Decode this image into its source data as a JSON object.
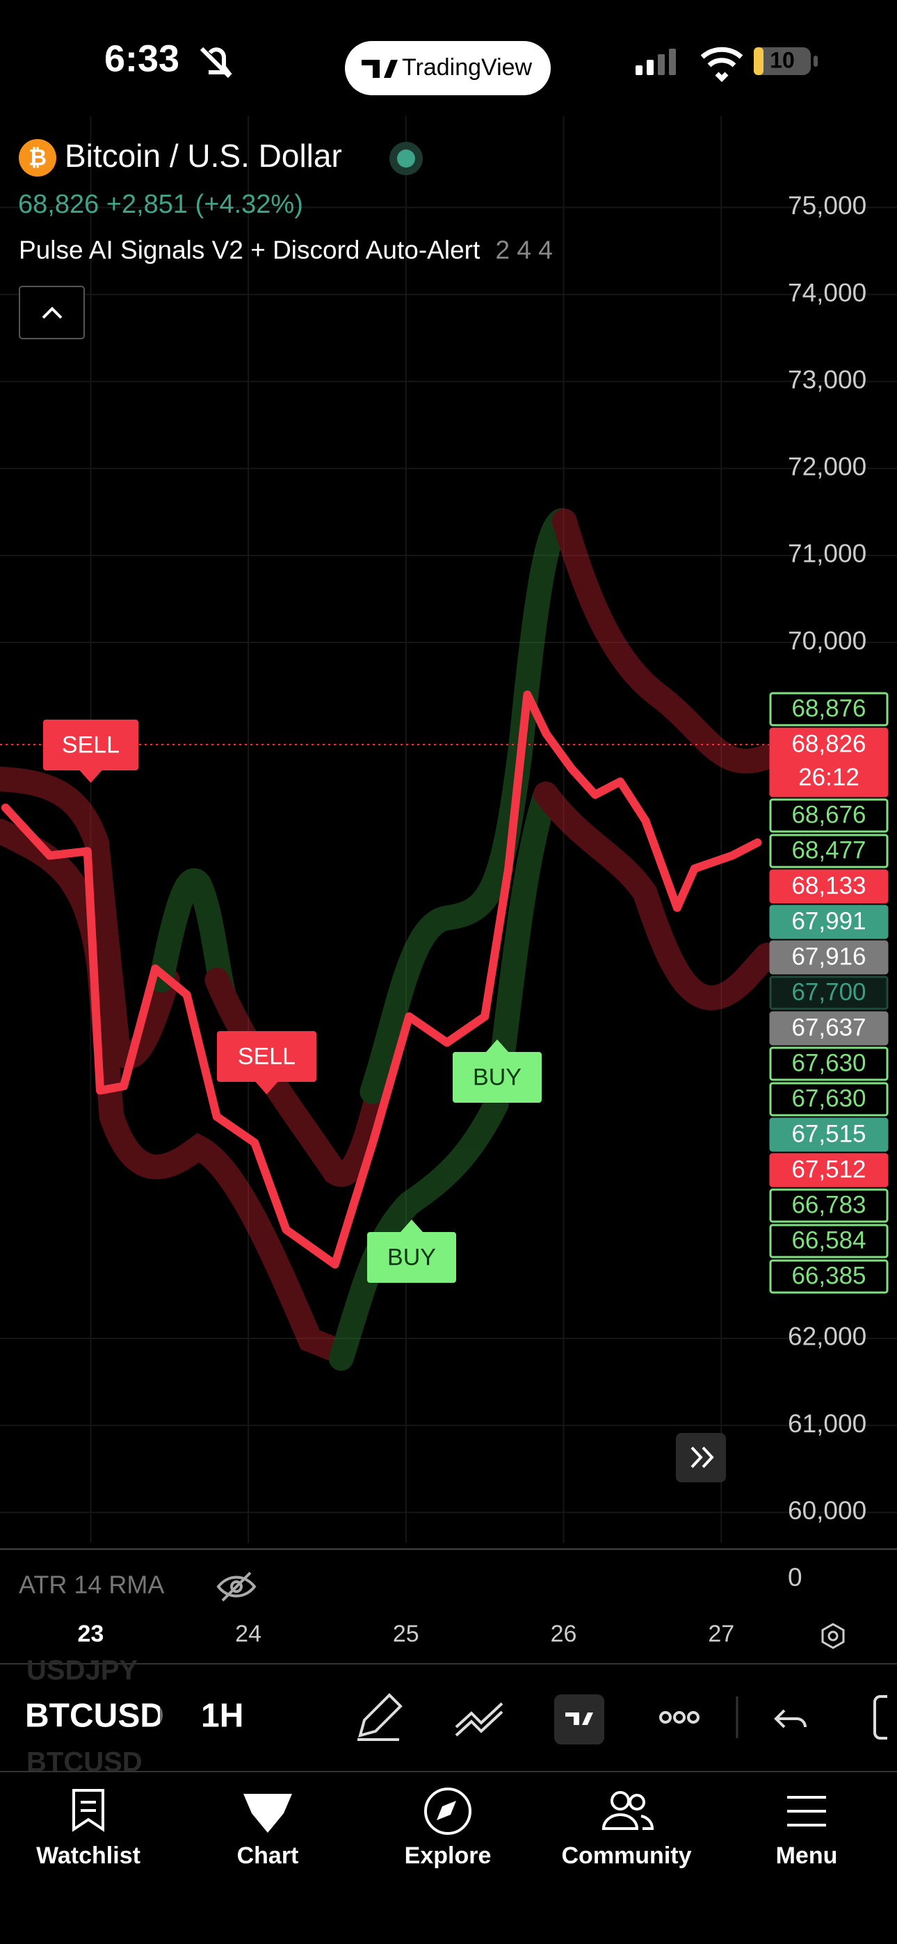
{
  "status_bar": {
    "time": "6:33",
    "app": "TradingView",
    "battery": "10"
  },
  "header": {
    "symbol": "Bitcoin / U.S. Dollar",
    "quote": "68,826 +2,851 (+4.32%)",
    "indicator": "Pulse AI Signals V2 + Discord Auto-Alert",
    "indicator_params": "2 4 4"
  },
  "chart_data": {
    "type": "line",
    "x": [
      22.46,
      22.74,
      22.98,
      23.06,
      23.21,
      23.41,
      23.61,
      23.8,
      24.04,
      24.24,
      24.55,
      24.79,
      25.02,
      25.26,
      25.5,
      25.65,
      25.77,
      25.89,
      26.05,
      26.2,
      26.36,
      26.52,
      26.72,
      26.83,
      27.07,
      27.23
    ],
    "values": [
      68100,
      67550,
      67600,
      64850,
      64900,
      66250,
      65950,
      64550,
      64250,
      63250,
      62850,
      64250,
      65700,
      65400,
      65700,
      67400,
      69400,
      68950,
      68550,
      68250,
      68400,
      67950,
      66950,
      67400,
      67550,
      67700
    ],
    "color": "#f23645",
    "xlim": [
      22.425,
      27.29
    ],
    "xticks": [
      23,
      24,
      25,
      26,
      27
    ],
    "ylim": [
      59650,
      76050
    ],
    "yticks": [
      {
        "value": 60000,
        "label": "60,000"
      },
      {
        "value": 61000,
        "label": "61,000"
      },
      {
        "value": 62000,
        "label": "62,000"
      },
      {
        "value": 70000,
        "label": "70,000"
      },
      {
        "value": 71000,
        "label": "71,000"
      },
      {
        "value": 72000,
        "label": "72,000"
      },
      {
        "value": 73000,
        "label": "73,000"
      },
      {
        "value": 74000,
        "label": "74,000"
      },
      {
        "value": 75000,
        "label": "75,000"
      }
    ],
    "grid": true
  },
  "price_labels": [
    {
      "value": 68876,
      "label": "68,876",
      "style": "green-outline"
    },
    {
      "value": 68826,
      "label": "68,826",
      "style": "red"
    },
    {
      "value": 68676,
      "label": "68,676",
      "style": "green-outline"
    },
    {
      "value": 68477,
      "label": "68,477",
      "style": "green-outline"
    },
    {
      "value": 68133,
      "label": "68,133",
      "style": "red"
    },
    {
      "value": 67991,
      "label": "67,991",
      "style": "teal"
    },
    {
      "value": 67916,
      "label": "67,916",
      "style": "grey"
    },
    {
      "value": 67700,
      "label": "67,700",
      "style": "dark"
    },
    {
      "value": 67637,
      "label": "67,637",
      "style": "grey"
    },
    {
      "value": 67630,
      "label": "67,630",
      "style": "green-outline"
    },
    {
      "value": 67630,
      "label": "67,630",
      "style": "green-outline"
    },
    {
      "value": 67515,
      "label": "67,515",
      "style": "teal"
    },
    {
      "value": 67512,
      "label": "67,512",
      "style": "red"
    },
    {
      "value": 66783,
      "label": "66,783",
      "style": "green-outline"
    },
    {
      "value": 66584,
      "label": "66,584",
      "style": "green-outline"
    },
    {
      "value": 66385,
      "label": "66,385",
      "style": "green-outline"
    }
  ],
  "countdown": "26:12",
  "signals": [
    "SELL",
    "SELL",
    "BUY",
    "BUY"
  ],
  "atr_pane": {
    "label": "ATR 14 RMA",
    "yticks": [
      0
    ]
  },
  "toolbar": {
    "symbols": [
      "USDJPY",
      "BTCUSD",
      "BTCUSD"
    ],
    "interval": "1H"
  },
  "nav": [
    "Watchlist",
    "Chart",
    "Explore",
    "Community",
    "Menu"
  ]
}
